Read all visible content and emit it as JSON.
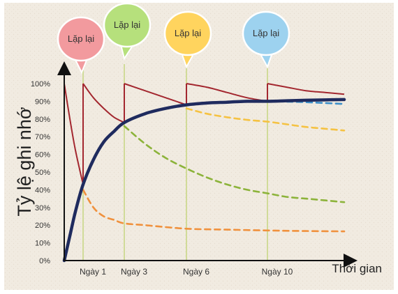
{
  "chart_data": {
    "type": "line",
    "xlabel": "Thời gian",
    "ylabel": "Tỷ lệ ghi nhớ",
    "ylim": [
      0,
      100
    ],
    "xlim": [
      0,
      14
    ],
    "yticks": [
      "0%",
      "10%",
      "20%",
      "30%",
      "40%",
      "50%",
      "60%",
      "70%",
      "80%",
      "90%",
      "100%"
    ],
    "review_days": [
      {
        "day": 1,
        "label": "Ngày 1",
        "bubble": "Lặp lại",
        "color": "#f29a9e"
      },
      {
        "day": 3,
        "label": "Ngày 3",
        "bubble": "Lặp lại",
        "color": "#b6e07c"
      },
      {
        "day": 6,
        "label": "Ngày 6",
        "bubble": "Lặp lại",
        "color": "#ffd45e"
      },
      {
        "day": 10,
        "label": "Ngày 10",
        "bubble": "Lặp lại",
        "color": "#9dd2ef"
      }
    ],
    "series": [
      {
        "color": "#a3272f",
        "style": "solid",
        "segments": [
          [
            [
              0,
              100
            ],
            [
              0.3,
              80
            ],
            [
              0.6,
              62
            ],
            [
              1,
              43
            ]
          ],
          [
            [
              1,
              100
            ],
            [
              1.5,
              92
            ],
            [
              2,
              86
            ],
            [
              2.5,
              81
            ],
            [
              3,
              78
            ]
          ],
          [
            [
              3,
              100
            ],
            [
              4,
              96
            ],
            [
              5,
              92
            ],
            [
              6,
              88
            ]
          ],
          [
            [
              6,
              100
            ],
            [
              7,
              98
            ],
            [
              8,
              95
            ],
            [
              9,
              92
            ],
            [
              10,
              90
            ]
          ],
          [
            [
              10,
              100
            ],
            [
              11,
              98
            ],
            [
              12,
              96
            ],
            [
              13,
              95
            ],
            [
              14,
              94
            ]
          ]
        ]
      },
      {
        "color": "#1f2b5e",
        "style": "solid",
        "points": [
          [
            0,
            0
          ],
          [
            0.3,
            14
          ],
          [
            0.6,
            28
          ],
          [
            1,
            43
          ],
          [
            1.5,
            57
          ],
          [
            2,
            67
          ],
          [
            2.5,
            73
          ],
          [
            3,
            78
          ],
          [
            4,
            83
          ],
          [
            5,
            86
          ],
          [
            6,
            88
          ],
          [
            7,
            89
          ],
          [
            8,
            89.5
          ],
          [
            9,
            90
          ],
          [
            10,
            90
          ],
          [
            11,
            90.3
          ],
          [
            12,
            90.6
          ],
          [
            13,
            90.8
          ],
          [
            14,
            91
          ]
        ]
      },
      {
        "color": "#f0913d",
        "style": "dashed",
        "points": [
          [
            1,
            40
          ],
          [
            1.5,
            30
          ],
          [
            2,
            25
          ],
          [
            2.5,
            23
          ],
          [
            3,
            21
          ],
          [
            4,
            20
          ],
          [
            6,
            18
          ],
          [
            8,
            17.5
          ],
          [
            10,
            17
          ],
          [
            12,
            16.7
          ],
          [
            14,
            16.5
          ]
        ]
      },
      {
        "color": "#8cb33a",
        "style": "dashed",
        "points": [
          [
            3,
            76
          ],
          [
            4,
            66
          ],
          [
            5,
            58
          ],
          [
            6,
            52
          ],
          [
            7,
            47
          ],
          [
            8,
            43
          ],
          [
            9,
            40
          ],
          [
            10,
            38
          ],
          [
            11,
            36
          ],
          [
            12,
            35
          ],
          [
            13,
            34
          ],
          [
            14,
            33
          ]
        ]
      },
      {
        "color": "#f5c242",
        "style": "dashed",
        "points": [
          [
            6,
            86
          ],
          [
            7,
            83
          ],
          [
            8,
            81
          ],
          [
            9,
            79.5
          ],
          [
            10,
            78.5
          ],
          [
            11,
            77
          ],
          [
            12,
            75.5
          ],
          [
            13,
            74.5
          ],
          [
            14,
            73.5
          ]
        ]
      },
      {
        "color": "#3d8fc9",
        "style": "dashed",
        "points": [
          [
            10,
            90
          ],
          [
            11,
            89.8
          ],
          [
            12,
            89.5
          ],
          [
            13,
            89
          ],
          [
            14,
            88.5
          ]
        ]
      }
    ]
  }
}
